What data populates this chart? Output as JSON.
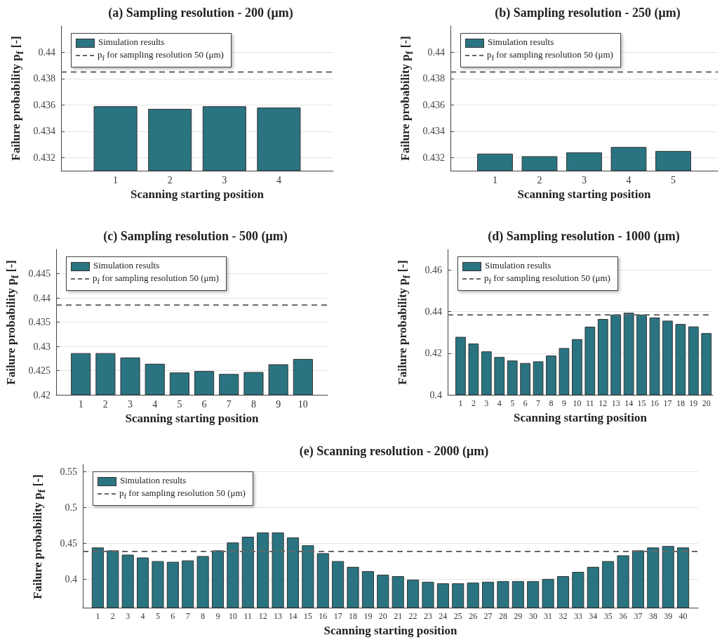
{
  "chart_data": [
    {
      "type": "bar",
      "title": "(a) Sampling resolution - 200 (μm)",
      "xlabel": "Scanning starting position",
      "ylabel": "Failure probability p$_{f}$ [-]",
      "x": [
        1,
        2,
        3,
        4
      ],
      "xlim": [
        0,
        5
      ],
      "xticks": [
        1,
        2,
        3,
        4
      ],
      "series": [
        {
          "name": "Simulation results",
          "color": "#2a7482",
          "values": [
            0.4359,
            0.4357,
            0.4359,
            0.4358
          ]
        }
      ],
      "ylim": [
        0.431,
        0.442
      ],
      "yticks": [
        0.432,
        0.434,
        0.436,
        0.438,
        0.44
      ],
      "ref_lines": [
        {
          "axis": "y",
          "value": 0.4385,
          "label": "p$_{f}$ for sampling resolution 50 (μm)",
          "color": "#666666",
          "line_style": "dashed"
        }
      ],
      "grid": "y",
      "legend": "top left"
    },
    {
      "type": "bar",
      "title": "(b) Sampling resolution - 250 (μm)",
      "xlabel": "Scanning starting position",
      "ylabel": "Failure probability p$_{f}$ [-]",
      "x": [
        1,
        2,
        3,
        4,
        5
      ],
      "xlim": [
        0,
        6
      ],
      "xticks": [
        1,
        2,
        3,
        4,
        5
      ],
      "series": [
        {
          "name": "Simulation results",
          "color": "#2a7482",
          "values": [
            0.4323,
            0.4321,
            0.4324,
            0.4328,
            0.4325
          ]
        }
      ],
      "ylim": [
        0.431,
        0.442
      ],
      "yticks": [
        0.432,
        0.434,
        0.436,
        0.438,
        0.44
      ],
      "ref_lines": [
        {
          "axis": "y",
          "value": 0.4385,
          "label": "p$_{f}$ for sampling resolution 50 (μm)",
          "color": "#666666",
          "line_style": "dashed"
        }
      ],
      "grid": "y",
      "legend": "top left"
    },
    {
      "type": "bar",
      "title": "(c) Sampling resolution - 500 (μm)",
      "xlabel": "Scanning starting position",
      "ylabel": "Failure probability p$_{f}$ [-]",
      "x": [
        1,
        2,
        3,
        4,
        5,
        6,
        7,
        8,
        9,
        10
      ],
      "xlim": [
        0,
        11
      ],
      "xticks": [
        1,
        2,
        3,
        4,
        5,
        6,
        7,
        8,
        9,
        10
      ],
      "series": [
        {
          "name": "Simulation results",
          "color": "#2a7482",
          "values": [
            0.4286,
            0.4286,
            0.4277,
            0.4264,
            0.4246,
            0.4249,
            0.4243,
            0.4247,
            0.4263,
            0.4274
          ]
        }
      ],
      "ylim": [
        0.42,
        0.45
      ],
      "yticks": [
        0.42,
        0.425,
        0.43,
        0.435,
        0.44,
        0.445
      ],
      "ref_lines": [
        {
          "axis": "y",
          "value": 0.4385,
          "label": "p$_{f}$ for sampling resolution 50 (μm)",
          "color": "#666666",
          "line_style": "dashed"
        }
      ],
      "grid": "y",
      "legend": "top left"
    },
    {
      "type": "bar",
      "title": "(d) Sampling resolution - 1000 (μm)",
      "xlabel": "Scanning starting position",
      "ylabel": "Failure probability p$_{f}$ [-]",
      "x": [
        1,
        2,
        3,
        4,
        5,
        6,
        7,
        8,
        9,
        10,
        11,
        12,
        13,
        14,
        15,
        16,
        17,
        18,
        19,
        20
      ],
      "xlim": [
        0,
        20.5
      ],
      "xticks": [
        1,
        2,
        3,
        4,
        5,
        6,
        7,
        8,
        9,
        10,
        11,
        12,
        13,
        14,
        15,
        16,
        17,
        18,
        19,
        20
      ],
      "series": [
        {
          "name": "Simulation results",
          "color": "#2a7482",
          "values": [
            0.4279,
            0.4247,
            0.4209,
            0.4182,
            0.4165,
            0.4153,
            0.4161,
            0.4189,
            0.4225,
            0.4268,
            0.4328,
            0.4365,
            0.4386,
            0.4395,
            0.4386,
            0.4372,
            0.4357,
            0.4341,
            0.4329,
            0.4297
          ]
        }
      ],
      "ylim": [
        0.4,
        0.47
      ],
      "yticks": [
        0.4,
        0.42,
        0.44,
        0.46
      ],
      "ref_lines": [
        {
          "axis": "y",
          "value": 0.4385,
          "label": "p$_{f}$ for sampling resolution 50 (μm)",
          "color": "#666666",
          "line_style": "dashed"
        }
      ],
      "grid": "y",
      "legend": "top left"
    },
    {
      "type": "bar",
      "title": "(e) Scanning resolution - 2000 (μm)",
      "xlabel": "Scanning starting position",
      "ylabel": "Failure probability p$_{f}$ [-]",
      "x": [
        1,
        2,
        3,
        4,
        5,
        6,
        7,
        8,
        9,
        10,
        11,
        12,
        13,
        14,
        15,
        16,
        17,
        18,
        19,
        20,
        21,
        22,
        23,
        24,
        25,
        26,
        27,
        28,
        29,
        30,
        31,
        32,
        33,
        34,
        35,
        36,
        37,
        38,
        39,
        40
      ],
      "xlim": [
        0,
        41
      ],
      "xticks": [
        1,
        2,
        3,
        4,
        5,
        6,
        7,
        8,
        9,
        10,
        11,
        12,
        13,
        14,
        15,
        16,
        17,
        18,
        19,
        20,
        21,
        22,
        23,
        24,
        25,
        26,
        27,
        28,
        29,
        30,
        31,
        32,
        33,
        34,
        35,
        36,
        37,
        38,
        39,
        40
      ],
      "series": [
        {
          "name": "Simulation results",
          "color": "#2a7482",
          "values": [
            0.444,
            0.44,
            0.434,
            0.43,
            0.425,
            0.424,
            0.426,
            0.432,
            0.44,
            0.451,
            0.459,
            0.465,
            0.465,
            0.458,
            0.447,
            0.436,
            0.425,
            0.417,
            0.411,
            0.406,
            0.404,
            0.399,
            0.396,
            0.394,
            0.394,
            0.395,
            0.396,
            0.397,
            0.397,
            0.397,
            0.4,
            0.404,
            0.41,
            0.417,
            0.425,
            0.433,
            0.44,
            0.444,
            0.446,
            0.444
          ]
        }
      ],
      "ylim": [
        0.36,
        0.56
      ],
      "yticks": [
        0.4,
        0.45,
        0.5,
        0.55
      ],
      "ref_lines": [
        {
          "axis": "y",
          "value": 0.4385,
          "label": "p$_{f}$ for sampling resolution 50 (μm)",
          "color": "#666666",
          "line_style": "dashed"
        }
      ],
      "grid": "y",
      "legend": "top left"
    }
  ]
}
